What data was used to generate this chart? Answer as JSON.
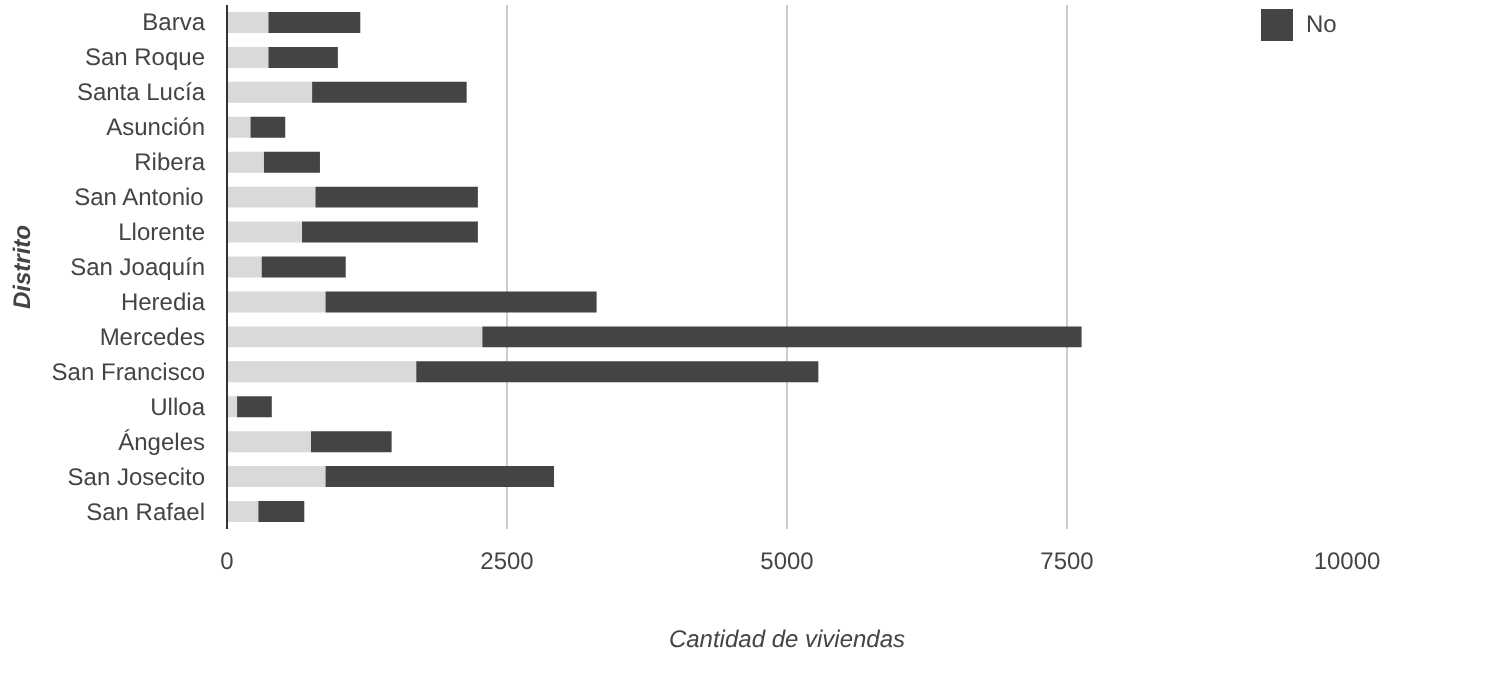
{
  "chart_data": {
    "type": "bar",
    "orientation": "horizontal",
    "stacked": true,
    "xlabel": "Cantidad de viviendas",
    "ylabel": "Distrito",
    "categories": [
      "Barva",
      "San Roque",
      "Santa Lucía",
      "Asunción",
      "Ribera",
      "San Antonio",
      "Llorente",
      "San Joaquín",
      "Heredia",
      "Mercedes",
      "San Francisco",
      "Ulloa",
      "Ángeles",
      "San Josecito",
      "San Rafael"
    ],
    "series": [
      {
        "color": "#d9d9d9",
        "values": [
          370,
          370,
          760,
          210,
          330,
          790,
          670,
          310,
          880,
          2280,
          1690,
          90,
          750,
          880,
          280
        ]
      },
      {
        "name": "No",
        "color": "#444444",
        "values": [
          820,
          620,
          1380,
          310,
          500,
          1450,
          1570,
          750,
          2420,
          5350,
          3590,
          310,
          720,
          2040,
          410
        ]
      }
    ],
    "xlim": [
      0,
      10000
    ],
    "xticks": [
      0,
      2500,
      5000,
      7500,
      10000
    ],
    "grid": "x",
    "legend": "top right"
  }
}
